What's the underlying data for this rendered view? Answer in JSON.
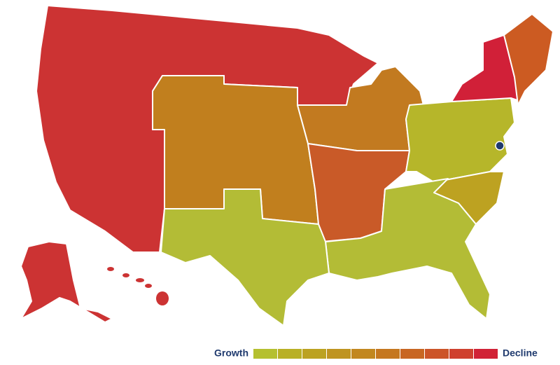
{
  "legend": {
    "start_label": "Growth",
    "end_label": "Decline",
    "colors": [
      "#b5c02f",
      "#b9b025",
      "#bca221",
      "#bf9420",
      "#c2871f",
      "#c5771f",
      "#c86622",
      "#cc5428",
      "#cf402e",
      "#d12236"
    ]
  }
}
